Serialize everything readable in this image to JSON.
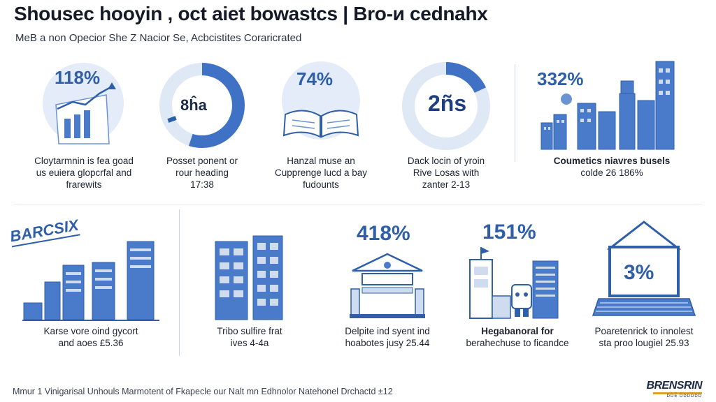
{
  "header": {
    "title": "Shousec hooyin , oct aiet bowastcs | Bro-и cednahx",
    "subtitle": "MeB a non Opecior She Z Nacior Se, Acbcistites Coraricrated"
  },
  "row1": [
    {
      "id": "p1",
      "value": "118%",
      "caption": [
        "Cloytarmnin is fea goad",
        "us euiera glopcrfal and",
        "frarewits"
      ],
      "icon": "chart-trend-arrow-icon"
    },
    {
      "id": "p2",
      "value": "8ĥa",
      "caption": [
        "Posset ponent or",
        "rour heading",
        "17:38"
      ],
      "icon": "donut-chart-icon",
      "fill_fraction": 0.55
    },
    {
      "id": "p3",
      "value": "74%",
      "caption": [
        "Hanzal muse an",
        "Cupprenge lucd a bay",
        "fudounts"
      ],
      "icon": "open-book-icon"
    },
    {
      "id": "p4",
      "value": "2ñs",
      "caption": [
        "Dack locin of yroin",
        "Rive Losas with",
        "zanter 2-13"
      ],
      "icon": "donut-chart-icon",
      "fill_fraction": 0.18
    },
    {
      "id": "p5",
      "value": "332%",
      "caption": [
        "Coumetics niavres busels",
        "colde 26 186%"
      ],
      "icon": "city-buildings-icon"
    }
  ],
  "row2": [
    {
      "id": "q1",
      "badge": "BARCSIX",
      "caption": [
        "Karse vore oind gycort",
        "and aoes £5.36"
      ],
      "icon": "bar-chart-icon"
    },
    {
      "id": "q2",
      "caption": [
        "Tribo sulfire frat",
        "ives 4-4a"
      ],
      "icon": "office-buildings-icon"
    },
    {
      "id": "q3",
      "value": "418%",
      "caption": [
        "Delpite ind syent ind",
        "hoabotes jusy 25.44"
      ],
      "icon": "bank-building-icon"
    },
    {
      "id": "q4",
      "value": "151%",
      "caption": [
        "Hegabanoral for",
        "berahechuse to ficandce"
      ],
      "icon": "tower-robot-icon"
    },
    {
      "id": "q5",
      "value": "3%",
      "caption": [
        "Poaretenrick to innolest",
        "sta proo lougiel 25.93"
      ],
      "icon": "laptop-icon"
    }
  ],
  "footer": {
    "text": "Mmur 1 Vinigarisal Unhouls Marmotent of Fkapecle our Nalt mn Edhnolor Natehonel Drchactd ±12",
    "brand": "BRENSRIN",
    "brand_tag": "DDE DDDDDD"
  },
  "colors": {
    "accent": "#3f72c4",
    "light": "#dfe8f5",
    "dark": "#2f5fa8"
  }
}
